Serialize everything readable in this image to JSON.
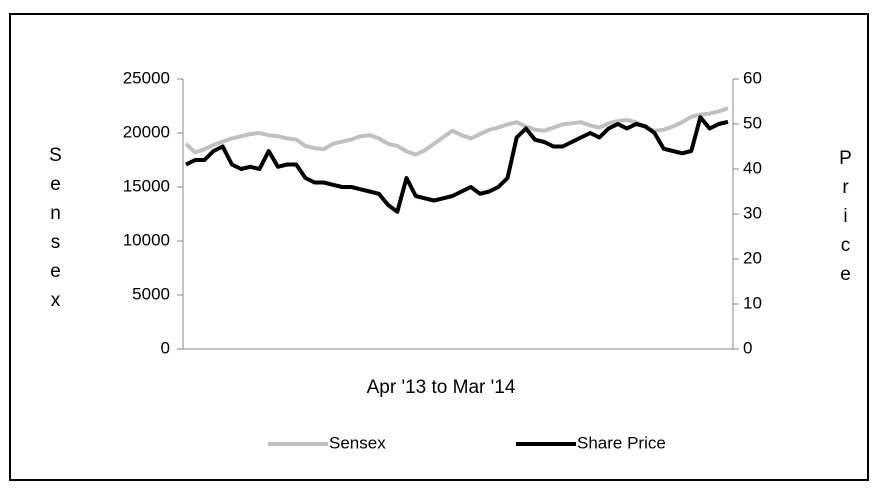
{
  "chart_data": {
    "type": "line",
    "x_label": "Apr  '13 to Mar '14",
    "y_label": "Sensex",
    "y2_label": "Price",
    "ylim": [
      0,
      25000
    ],
    "yticks": [
      0,
      5000,
      10000,
      15000,
      20000,
      25000
    ],
    "y2lim": [
      0,
      60
    ],
    "y2ticks": [
      0,
      10,
      20,
      30,
      40,
      50,
      60
    ],
    "legend": "bottom",
    "series": [
      {
        "name": "Sensex",
        "color": "#c0c0c0",
        "values": [
          19000,
          18200,
          18500,
          18900,
          19200,
          19500,
          19700,
          19900,
          20000,
          19800,
          19700,
          19500,
          19400,
          18800,
          18600,
          18500,
          19000,
          19200,
          19400,
          19700,
          19800,
          19500,
          19000,
          18800,
          18300,
          18000,
          18400,
          19000,
          19600,
          20200,
          19800,
          19500,
          19900,
          20300,
          20500,
          20800,
          21000,
          20600,
          20300,
          20200,
          20500,
          20800,
          20900,
          21000,
          20700,
          20500,
          20900,
          21100,
          21200,
          21000,
          20500,
          20200,
          20300,
          20600,
          21000,
          21500,
          21700,
          21800,
          22000,
          22300
        ]
      },
      {
        "name": "Share Price",
        "color": "#000000",
        "axis": "y2",
        "values": [
          41,
          42,
          42,
          44,
          45,
          41,
          40,
          40.5,
          40,
          44,
          40.5,
          41,
          41,
          38,
          37,
          37,
          36.5,
          36,
          36,
          35.5,
          35,
          34.5,
          32,
          30.5,
          38,
          34,
          33.5,
          33,
          33.5,
          34,
          35,
          36,
          34.5,
          35,
          36,
          38,
          47,
          49,
          46.5,
          46,
          45,
          45,
          46,
          47,
          48,
          47,
          49,
          50,
          49,
          50,
          49.5,
          48,
          44.5,
          44,
          43.5,
          44,
          51.5,
          49,
          50,
          50.5
        ]
      }
    ]
  }
}
